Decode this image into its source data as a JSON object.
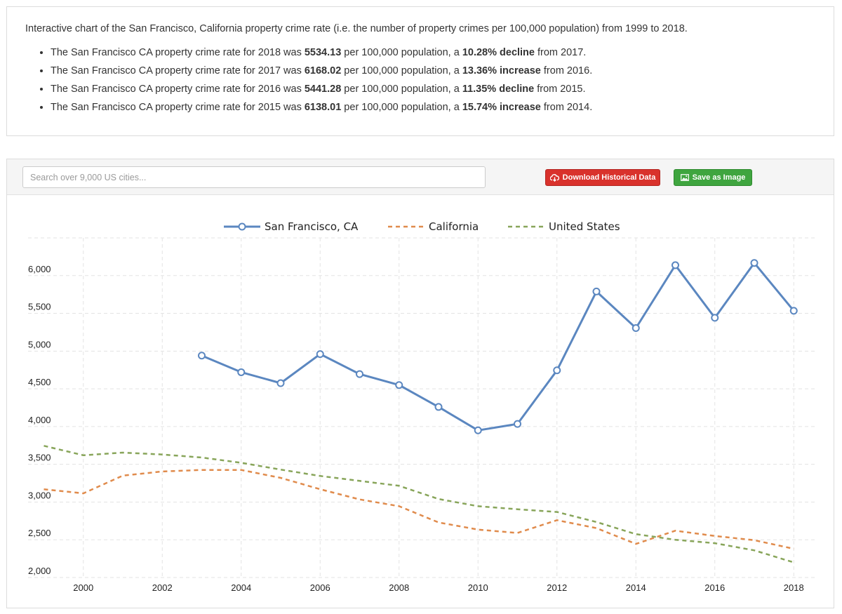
{
  "summary": {
    "intro": "Interactive chart of the San Francisco, California property crime rate (i.e. the number of property crimes per 100,000 population) from 1999 to 2018.",
    "bullets": [
      {
        "pre": "The San Francisco CA property crime rate for 2018 was ",
        "rate": "5534.13",
        "mid": " per 100,000 population, a ",
        "change": "10.28% decline",
        "post": " from 2017."
      },
      {
        "pre": "The San Francisco CA property crime rate for 2017 was ",
        "rate": "6168.02",
        "mid": " per 100,000 population, a ",
        "change": "13.36% increase",
        "post": " from 2016."
      },
      {
        "pre": "The San Francisco CA property crime rate for 2016 was ",
        "rate": "5441.28",
        "mid": " per 100,000 population, a ",
        "change": "11.35% decline",
        "post": " from 2015."
      },
      {
        "pre": "The San Francisco CA property crime rate for 2015 was ",
        "rate": "6138.01",
        "mid": " per 100,000 population, a ",
        "change": "15.74% increase",
        "post": " from 2014."
      }
    ]
  },
  "toolbar": {
    "search_placeholder": "Search over 9,000 US cities...",
    "download_label": "Download Historical Data",
    "save_label": "Save as Image",
    "download_color": "#d9322c",
    "save_color": "#3fa53f"
  },
  "chart_data": {
    "type": "line",
    "xlim": [
      1998.6,
      2018.6
    ],
    "ylim": [
      2000,
      6500
    ],
    "xticks": [
      2000,
      2002,
      2004,
      2006,
      2008,
      2010,
      2012,
      2014,
      2016,
      2018
    ],
    "yticks": [
      2000,
      2500,
      3000,
      3500,
      4000,
      4500,
      5000,
      5500,
      6000
    ],
    "grid": true,
    "legend_position": "top-center",
    "series": [
      {
        "name": "San Francisco, CA",
        "color": "#5b87c0",
        "style": "solid-markers",
        "x": [
          2003,
          2004,
          2005,
          2006,
          2007,
          2008,
          2009,
          2010,
          2011,
          2012,
          2013,
          2014,
          2015,
          2016,
          2017,
          2018
        ],
        "y": [
          4940,
          4720,
          4575,
          4960,
          4695,
          4550,
          4260,
          3950,
          4035,
          4745,
          5790,
          5305,
          6138.01,
          5441.28,
          6168.02,
          5534.13
        ]
      },
      {
        "name": "California",
        "color": "#e08b4c",
        "style": "dashed",
        "x": [
          1999,
          2000,
          2001,
          2002,
          2003,
          2004,
          2005,
          2006,
          2007,
          2008,
          2009,
          2010,
          2011,
          2012,
          2013,
          2014,
          2015,
          2016,
          2017,
          2018
        ],
        "y": [
          3170,
          3115,
          3350,
          3405,
          3425,
          3425,
          3320,
          3170,
          3035,
          2945,
          2730,
          2635,
          2590,
          2760,
          2655,
          2445,
          2620,
          2550,
          2495,
          2380
        ]
      },
      {
        "name": "United States",
        "color": "#88a55a",
        "style": "dashed",
        "x": [
          1999,
          2000,
          2001,
          2002,
          2003,
          2004,
          2005,
          2006,
          2007,
          2008,
          2009,
          2010,
          2011,
          2012,
          2013,
          2014,
          2015,
          2016,
          2017,
          2018
        ],
        "y": [
          3745,
          3620,
          3655,
          3630,
          3590,
          3520,
          3430,
          3345,
          3280,
          3215,
          3040,
          2945,
          2905,
          2868,
          2735,
          2575,
          2500,
          2455,
          2360,
          2200
        ]
      }
    ]
  }
}
